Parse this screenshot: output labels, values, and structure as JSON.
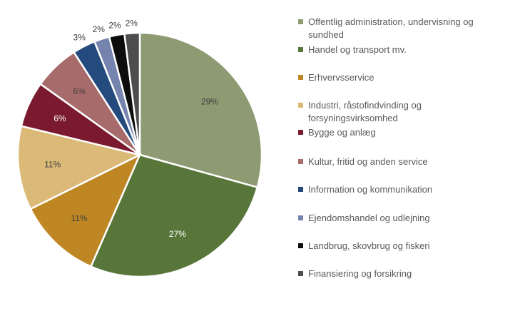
{
  "chart_data": {
    "type": "pie",
    "title": "",
    "start_angle_deg": 0,
    "direction": "clockwise",
    "slices": [
      {
        "label": "Offentlig administration, undervisning og sundhed",
        "value": 29,
        "data_label": "29%",
        "color": "#8D9A72",
        "label_color": "#404040"
      },
      {
        "label": "Handel og transport mv.",
        "value": 27,
        "data_label": "27%",
        "color": "#58763A",
        "label_color": "#FFFFFF"
      },
      {
        "label": "Erhvervsservice",
        "value": 11,
        "data_label": "11%",
        "color": "#BF8724",
        "label_color": "#404040"
      },
      {
        "label": "Industri, råstofindvinding og forsyningsvirksomhed",
        "value": 11,
        "data_label": "11%",
        "color": "#DBB977",
        "label_color": "#404040"
      },
      {
        "label": "Bygge og anlæg",
        "value": 6,
        "data_label": "6%",
        "color": "#7B1A2E",
        "label_color": "#FFFFFF"
      },
      {
        "label": "Kultur, fritid og anden service",
        "value": 6,
        "data_label": "6%",
        "color": "#A86B6C",
        "label_color": "#404040"
      },
      {
        "label": "Information og kommunikation",
        "value": 3,
        "data_label": "3%",
        "color": "#244A7E",
        "label_color": "#404040"
      },
      {
        "label": "Ejendomshandel og udlejning",
        "value": 2,
        "data_label": "2%",
        "color": "#7584AE",
        "label_color": "#404040"
      },
      {
        "label": "Landbrug, skovbrug og fiskeri",
        "value": 2,
        "data_label": "2%",
        "color": "#0D0D0D",
        "label_color": "#404040"
      },
      {
        "label": "Finansiering og forsikring",
        "value": 2,
        "data_label": "2%",
        "color": "#4D4D4D",
        "label_color": "#404040"
      }
    ],
    "legend_placement": "right"
  }
}
